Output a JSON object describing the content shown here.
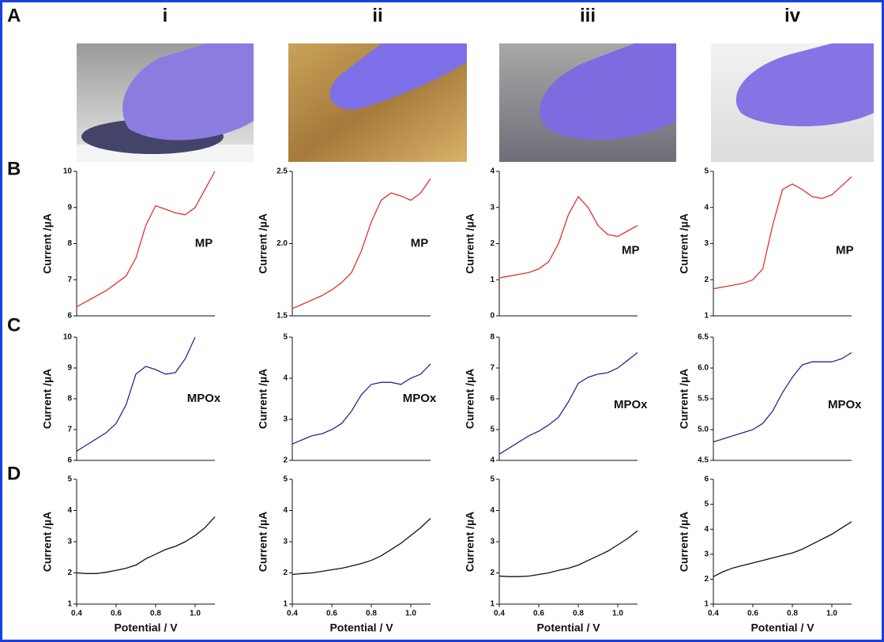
{
  "panels": [
    "A",
    "B",
    "C",
    "D"
  ],
  "columns": [
    "i",
    "ii",
    "iii",
    "iv"
  ],
  "chart_data": [
    {
      "type": "line",
      "ylabel": "Current /µA",
      "annotation": "MP",
      "x": [
        0.4,
        0.45,
        0.5,
        0.55,
        0.6,
        0.65,
        0.7,
        0.75,
        0.8,
        0.85,
        0.9,
        0.95,
        1.0,
        1.05,
        1.1
      ],
      "values": [
        6.25,
        6.4,
        6.55,
        6.7,
        6.9,
        7.1,
        7.6,
        8.5,
        9.05,
        8.95,
        8.85,
        8.8,
        9.0,
        9.5,
        10.0
      ],
      "color": "#e03030",
      "xlim": [
        0.4,
        1.1
      ],
      "ylim": [
        6,
        10
      ],
      "yticks": [
        6,
        7,
        8,
        9,
        10
      ]
    },
    {
      "type": "line",
      "ylabel": "Current /µA",
      "annotation": "MP",
      "x": [
        0.4,
        0.45,
        0.5,
        0.55,
        0.6,
        0.65,
        0.7,
        0.75,
        0.8,
        0.85,
        0.9,
        0.95,
        1.0,
        1.05,
        1.1
      ],
      "values": [
        1.55,
        1.58,
        1.61,
        1.64,
        1.68,
        1.73,
        1.8,
        1.95,
        2.15,
        2.3,
        2.35,
        2.33,
        2.3,
        2.35,
        2.45
      ],
      "color": "#e03030",
      "xlim": [
        0.4,
        1.1
      ],
      "ylim": [
        1.5,
        2.5
      ],
      "yticks": [
        1.5,
        {
          "value": 2,
          "label": "2.0"
        },
        2.5
      ]
    },
    {
      "type": "line",
      "ylabel": "Current /µA",
      "annotation": "MP",
      "x": [
        0.4,
        0.45,
        0.5,
        0.55,
        0.6,
        0.65,
        0.7,
        0.75,
        0.8,
        0.85,
        0.9,
        0.95,
        1.0,
        1.05,
        1.1
      ],
      "values": [
        1.05,
        1.1,
        1.15,
        1.2,
        1.3,
        1.5,
        2.0,
        2.8,
        3.3,
        3.0,
        2.5,
        2.25,
        2.2,
        2.35,
        2.5
      ],
      "color": "#e03030",
      "xlim": [
        0.4,
        1.1
      ],
      "ylim": [
        0,
        4
      ],
      "yticks": [
        0,
        1,
        2,
        3,
        4
      ]
    },
    {
      "type": "line",
      "ylabel": "Current /µA",
      "annotation": "MP",
      "x": [
        0.4,
        0.45,
        0.5,
        0.55,
        0.6,
        0.65,
        0.7,
        0.75,
        0.8,
        0.85,
        0.9,
        0.95,
        1.0,
        1.05,
        1.1
      ],
      "values": [
        1.75,
        1.8,
        1.85,
        1.9,
        2.0,
        2.3,
        3.5,
        4.5,
        4.65,
        4.5,
        4.3,
        4.25,
        4.35,
        4.6,
        4.85
      ],
      "color": "#e03030",
      "xlim": [
        0.4,
        1.1
      ],
      "ylim": [
        1,
        5
      ],
      "yticks": [
        1,
        2,
        3,
        4,
        5
      ]
    },
    {
      "type": "line",
      "ylabel": "Current /µA",
      "annotation": "MPOx",
      "x": [
        0.4,
        0.45,
        0.5,
        0.55,
        0.6,
        0.65,
        0.7,
        0.75,
        0.8,
        0.85,
        0.9,
        0.95,
        1.0,
        1.05,
        1.1
      ],
      "values": [
        6.3,
        6.5,
        6.7,
        6.9,
        7.2,
        7.8,
        8.8,
        9.05,
        8.95,
        8.8,
        8.85,
        9.3,
        10.0,
        null,
        null
      ],
      "color": "#2a2a90",
      "xlim": [
        0.4,
        1.1
      ],
      "ylim": [
        6,
        10
      ],
      "yticks": [
        6,
        7,
        8,
        9,
        10
      ]
    },
    {
      "type": "line",
      "ylabel": "Current /µA",
      "annotation": "MPOx",
      "x": [
        0.4,
        0.45,
        0.5,
        0.55,
        0.6,
        0.65,
        0.7,
        0.75,
        0.8,
        0.85,
        0.9,
        0.95,
        1.0,
        1.05,
        1.1
      ],
      "values": [
        2.4,
        2.5,
        2.6,
        2.65,
        2.75,
        2.9,
        3.2,
        3.6,
        3.85,
        3.9,
        3.9,
        3.85,
        4.0,
        4.1,
        4.35
      ],
      "color": "#2a2a90",
      "xlim": [
        0.4,
        1.1
      ],
      "ylim": [
        2,
        5
      ],
      "yticks": [
        2,
        3,
        4,
        5
      ]
    },
    {
      "type": "line",
      "ylabel": "Current /µA",
      "annotation": "MPOx",
      "x": [
        0.4,
        0.45,
        0.5,
        0.55,
        0.6,
        0.65,
        0.7,
        0.75,
        0.8,
        0.85,
        0.9,
        0.95,
        1.0,
        1.05,
        1.1
      ],
      "values": [
        4.2,
        4.4,
        4.6,
        4.8,
        4.95,
        5.15,
        5.4,
        5.9,
        6.5,
        6.7,
        6.8,
        6.85,
        7.0,
        7.25,
        7.5
      ],
      "color": "#2a2a90",
      "xlim": [
        0.4,
        1.1
      ],
      "ylim": [
        4,
        8
      ],
      "yticks": [
        4,
        5,
        6,
        7,
        8
      ]
    },
    {
      "type": "line",
      "ylabel": "Current /µA",
      "annotation": "MPOx",
      "x": [
        0.4,
        0.45,
        0.5,
        0.55,
        0.6,
        0.65,
        0.7,
        0.75,
        0.8,
        0.85,
        0.9,
        0.95,
        1.0,
        1.05,
        1.1
      ],
      "values": [
        4.8,
        4.85,
        4.9,
        4.95,
        5.0,
        5.1,
        5.3,
        5.6,
        5.85,
        6.05,
        6.1,
        6.1,
        6.1,
        6.15,
        6.25
      ],
      "color": "#2a2a90",
      "xlim": [
        0.4,
        1.1
      ],
      "ylim": [
        4.5,
        6.5
      ],
      "yticks": [
        4.5,
        {
          "value": 5,
          "label": "5.0"
        },
        5.5,
        {
          "value": 6,
          "label": "6.0"
        },
        6.5
      ]
    },
    {
      "type": "line",
      "ylabel": "Current /µA",
      "xlabel": "Potential / V",
      "x": [
        0.4,
        0.45,
        0.5,
        0.55,
        0.6,
        0.65,
        0.7,
        0.75,
        0.8,
        0.85,
        0.9,
        0.95,
        1.0,
        1.05,
        1.1
      ],
      "values": [
        2.0,
        1.98,
        1.98,
        2.02,
        2.08,
        2.15,
        2.25,
        2.45,
        2.6,
        2.75,
        2.85,
        3.0,
        3.2,
        3.45,
        3.8
      ],
      "color": "#111111",
      "xlim": [
        0.4,
        1.1
      ],
      "ylim": [
        1,
        5
      ],
      "yticks": [
        1,
        2,
        3,
        4,
        5
      ],
      "xticks": [
        0.4,
        0.6,
        0.8,
        {
          "value": 1,
          "label": "1.0"
        }
      ]
    },
    {
      "type": "line",
      "ylabel": "Current /µA",
      "xlabel": "Potential / V",
      "x": [
        0.4,
        0.45,
        0.5,
        0.55,
        0.6,
        0.65,
        0.7,
        0.75,
        0.8,
        0.85,
        0.9,
        0.95,
        1.0,
        1.05,
        1.1
      ],
      "values": [
        1.95,
        1.98,
        2.0,
        2.05,
        2.1,
        2.15,
        2.22,
        2.3,
        2.4,
        2.55,
        2.75,
        2.95,
        3.2,
        3.45,
        3.75
      ],
      "color": "#111111",
      "xlim": [
        0.4,
        1.1
      ],
      "ylim": [
        1,
        5
      ],
      "yticks": [
        1,
        2,
        3,
        4,
        5
      ],
      "xticks": [
        0.4,
        0.6,
        0.8,
        {
          "value": 1,
          "label": "1.0"
        }
      ]
    },
    {
      "type": "line",
      "ylabel": "Current /µA",
      "xlabel": "Potential / V",
      "x": [
        0.4,
        0.45,
        0.5,
        0.55,
        0.6,
        0.65,
        0.7,
        0.75,
        0.8,
        0.85,
        0.9,
        0.95,
        1.0,
        1.05,
        1.1
      ],
      "values": [
        1.9,
        1.88,
        1.88,
        1.9,
        1.95,
        2.0,
        2.08,
        2.15,
        2.25,
        2.4,
        2.55,
        2.7,
        2.9,
        3.1,
        3.35
      ],
      "color": "#111111",
      "xlim": [
        0.4,
        1.1
      ],
      "ylim": [
        1,
        5
      ],
      "yticks": [
        1,
        2,
        3,
        4,
        5
      ],
      "xticks": [
        0.4,
        0.6,
        0.8,
        {
          "value": 1,
          "label": "1.0"
        }
      ]
    },
    {
      "type": "line",
      "ylabel": "Current /µA",
      "xlabel": "Potential / V",
      "x": [
        0.4,
        0.45,
        0.5,
        0.55,
        0.6,
        0.65,
        0.7,
        0.75,
        0.8,
        0.85,
        0.9,
        0.95,
        1.0,
        1.05,
        1.1
      ],
      "values": [
        2.1,
        2.3,
        2.45,
        2.55,
        2.65,
        2.75,
        2.85,
        2.95,
        3.05,
        3.2,
        3.4,
        3.6,
        3.8,
        4.05,
        4.3
      ],
      "color": "#111111",
      "xlim": [
        0.4,
        1.1
      ],
      "ylim": [
        1,
        6
      ],
      "yticks": [
        1,
        2,
        3,
        4,
        5,
        6
      ],
      "xticks": [
        0.4,
        0.6,
        0.8,
        {
          "value": 1,
          "label": "1.0"
        }
      ]
    }
  ]
}
